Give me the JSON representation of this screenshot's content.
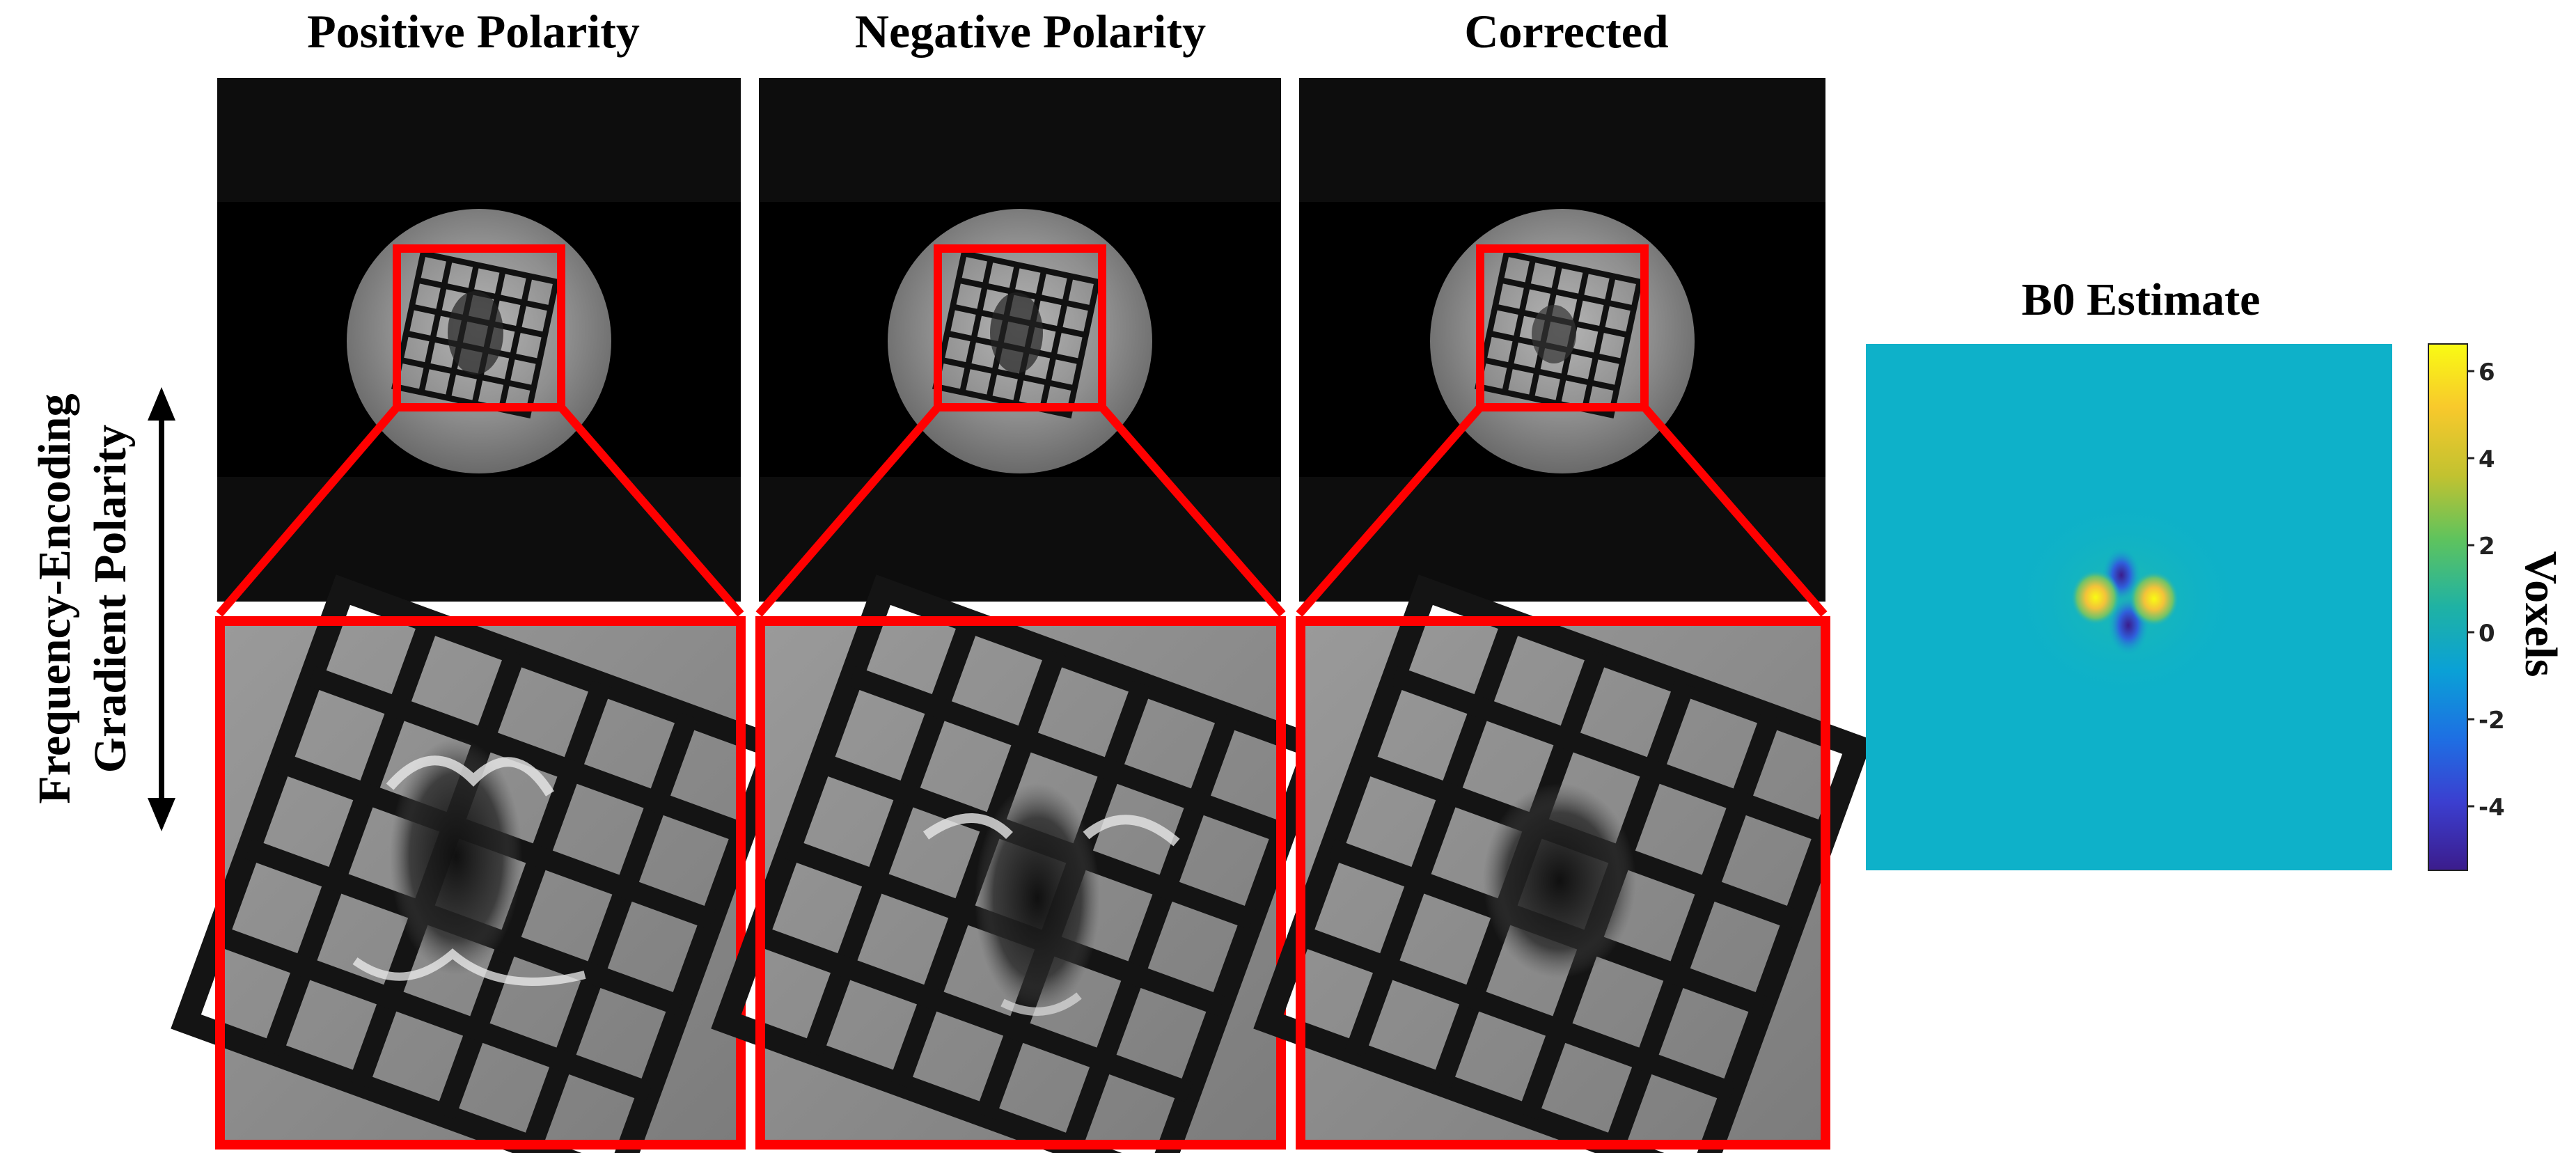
{
  "panels": {
    "positive_title": "Positive Polarity",
    "negative_title": "Negative Polarity",
    "corrected_title": "Corrected"
  },
  "side_label": {
    "line1": "Frequency-Encoding",
    "line2": "Gradient Polarity"
  },
  "b0": {
    "title": "B0 Estimate",
    "colorbar_label": "Voxels",
    "ticks": [
      "6",
      "4",
      "2",
      "0",
      "-2",
      "-4"
    ],
    "colors": {
      "background": "#0eb1c9",
      "min": "#3b1c8c",
      "max": "#f9fb13"
    }
  },
  "colors": {
    "zoom_box": "#ff0000",
    "mri_background": "#000000"
  }
}
